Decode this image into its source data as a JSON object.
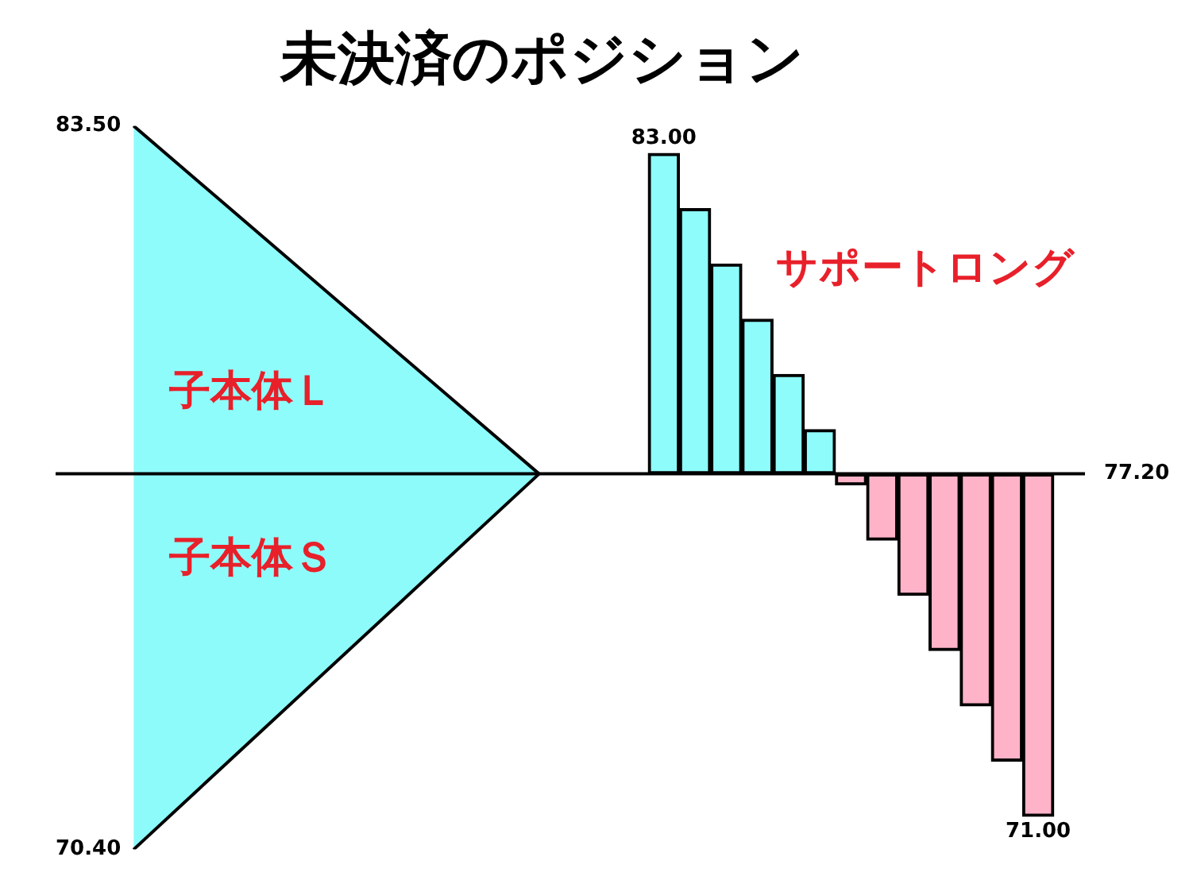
{
  "chart_data": {
    "type": "bar",
    "title": "未決済のポジション",
    "categories": [
      null,
      null,
      null,
      null,
      null,
      null,
      null,
      null,
      null,
      null,
      null,
      null,
      null,
      null,
      null,
      null,
      null,
      null,
      null,
      null,
      null,
      null,
      null,
      null,
      null,
      null,
      null,
      null,
      null,
      null,
      null,
      null,
      null
    ],
    "series": [
      {
        "type": "area",
        "color": "#8ffcfc",
        "values": [
          null,
          null,
          83.5,
          null,
          null,
          null,
          null,
          null,
          null,
          null,
          null,
          null,
          null,
          null,
          null,
          77.2,
          null,
          null,
          null,
          null,
          null,
          null,
          null,
          null,
          null,
          null,
          null,
          null,
          null,
          null,
          null,
          null,
          null
        ]
      },
      {
        "type": "area",
        "color": "#8efbfb",
        "values": [
          null,
          null,
          70.4,
          null,
          null,
          null,
          null,
          null,
          null,
          null,
          null,
          null,
          null,
          null,
          null,
          77.2,
          null,
          null,
          null,
          null,
          null,
          null,
          null,
          null,
          null,
          null,
          null,
          null,
          null,
          null,
          null,
          null,
          null
        ]
      },
      {
        "type": "bar",
        "values": [
          null,
          null,
          null,
          null,
          null,
          null,
          null,
          null,
          null,
          null,
          null,
          null,
          null,
          null,
          null,
          null,
          null,
          null,
          null,
          5.8,
          4.8,
          3.8,
          2.8,
          1.8,
          0.8,
          -0.2,
          -1.2,
          -2.2,
          -3.2,
          -4.2,
          -5.2,
          -6.2,
          null
        ],
        "base": [
          null,
          null,
          null,
          null,
          null,
          null,
          null,
          null,
          null,
          null,
          null,
          null,
          null,
          null,
          null,
          null,
          null,
          null,
          null,
          77.2,
          77.2,
          77.2,
          77.2,
          77.2,
          77.2,
          77.2,
          77.2,
          77.2,
          77.2,
          77.2,
          77.2,
          77.2,
          null
        ],
        "colors": [
          null,
          null,
          null,
          null,
          null,
          null,
          null,
          null,
          null,
          null,
          null,
          null,
          null,
          null,
          null,
          null,
          null,
          null,
          null,
          "#8ffcfc",
          "#8ffcfc",
          "#8ffcfc",
          "#8ffcfc",
          "#8ffcfc",
          "#8ffcfc",
          "#ffb3c8",
          "#ffb3c8",
          "#ffb3c8",
          "#ffb3c8",
          "#ffb3c8",
          "#ffb3c8",
          "#ffb3c8",
          null
        ],
        "value_labels": [
          null,
          null,
          null,
          null,
          null,
          null,
          null,
          null,
          null,
          null,
          null,
          null,
          null,
          null,
          null,
          null,
          null,
          null,
          null,
          "83.00",
          null,
          null,
          null,
          null,
          null,
          null,
          null,
          null,
          null,
          null,
          null,
          "71.00",
          null
        ]
      }
    ],
    "ylim": [
      70.4,
      83.5
    ],
    "yticks": [
      {
        "value": 83.5,
        "label": "83.50"
      },
      {
        "value": 70.4,
        "label": "70.40"
      }
    ],
    "tick_labels": "y",
    "ref_lines": [
      {
        "axis": "y",
        "value": 77.2,
        "label": "77.20"
      }
    ],
    "annotations": [
      "子本体Ｌ",
      "子本体Ｓ",
      "サポートロング"
    ]
  }
}
